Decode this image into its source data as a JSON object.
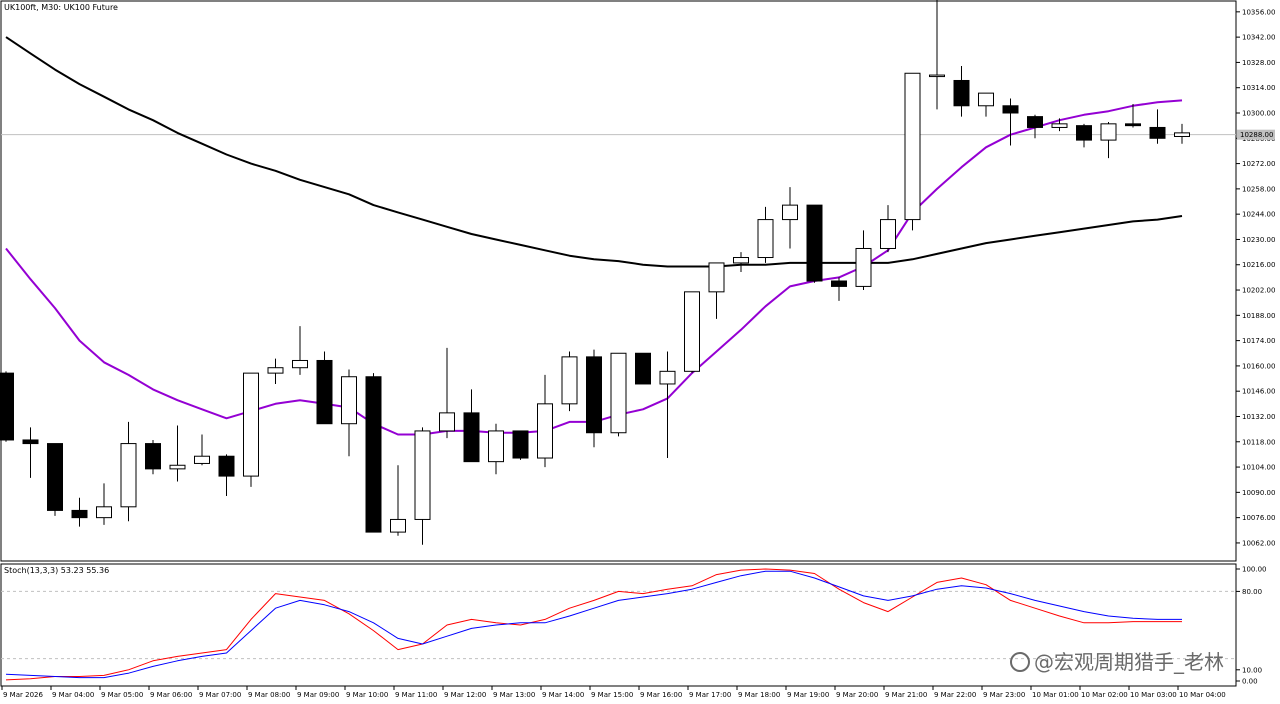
{
  "chart_data": [
    {
      "type": "candlestick",
      "title": "UK100ft, M30:  UK100 Future",
      "ylim": [
        10052,
        10362
      ],
      "yticks": [
        10062,
        10076,
        10090,
        10104,
        10118,
        10132,
        10146,
        10160,
        10174,
        10188,
        10202,
        10216,
        10230,
        10244,
        10258,
        10272,
        10286,
        10300,
        10314,
        10328,
        10342,
        10356
      ],
      "current_price": 10288,
      "current_price_label": "10288.00",
      "colors": {
        "up_body": "#ffffff",
        "down_body": "#000000",
        "wick": "#000000",
        "ma_slow": "#000000",
        "ma_fast": "#9400d3",
        "price_line": "#c0c0c0"
      },
      "x_labels": [
        "9 Mar 2026",
        "9 Mar 04:00",
        "9 Mar 05:00",
        "9 Mar 06:00",
        "9 Mar 07:00",
        "9 Mar 08:00",
        "9 Mar 09:00",
        "9 Mar 10:00",
        "9 Mar 11:00",
        "9 Mar 12:00",
        "9 Mar 13:00",
        "9 Mar 14:00",
        "9 Mar 15:00",
        "9 Mar 16:00",
        "9 Mar 17:00",
        "9 Mar 18:00",
        "9 Mar 19:00",
        "9 Mar 20:00",
        "9 Mar 21:00",
        "9 Mar 22:00",
        "9 Mar 23:00",
        "10 Mar 01:00",
        "10 Mar 02:00",
        "10 Mar 03:00",
        "10 Mar 04:00"
      ],
      "candles": [
        [
          10156,
          10157,
          10118,
          10119
        ],
        [
          10119,
          10126,
          10098,
          10117
        ],
        [
          10117,
          10117,
          10077,
          10080
        ],
        [
          10080,
          10087,
          10071,
          10076
        ],
        [
          10076,
          10095,
          10072,
          10082
        ],
        [
          10082,
          10129,
          10074,
          10117
        ],
        [
          10117,
          10119,
          10100,
          10103
        ],
        [
          10103,
          10127,
          10096,
          10105
        ],
        [
          10106,
          10122,
          10105,
          10110
        ],
        [
          10110,
          10111,
          10088,
          10099
        ],
        [
          10099,
          10156,
          10093,
          10156
        ],
        [
          10156,
          10164,
          10150,
          10159
        ],
        [
          10159,
          10182,
          10155,
          10163
        ],
        [
          10163,
          10168,
          10128,
          10128
        ],
        [
          10128,
          10158,
          10110,
          10154
        ],
        [
          10154,
          10156,
          10068,
          10068
        ],
        [
          10068,
          10105,
          10066,
          10075
        ],
        [
          10075,
          10126,
          10061,
          10124
        ],
        [
          10124,
          10170,
          10120,
          10134
        ],
        [
          10134,
          10147,
          10107,
          10107
        ],
        [
          10107,
          10128,
          10100,
          10124
        ],
        [
          10124,
          10124,
          10108,
          10109
        ],
        [
          10109,
          10155,
          10104,
          10139
        ],
        [
          10139,
          10168,
          10135,
          10165
        ],
        [
          10165,
          10169,
          10115,
          10123
        ],
        [
          10123,
          10167,
          10121,
          10167
        ],
        [
          10167,
          10167,
          10150,
          10150
        ],
        [
          10150,
          10168,
          10109,
          10157
        ],
        [
          10157,
          10201,
          10156,
          10201
        ],
        [
          10201,
          10216,
          10186,
          10217
        ],
        [
          10217,
          10223,
          10212,
          10220
        ],
        [
          10220,
          10248,
          10217,
          10241
        ],
        [
          10241,
          10259,
          10225,
          10249
        ],
        [
          10249,
          10249,
          10206,
          10207
        ],
        [
          10207,
          10209,
          10196,
          10204
        ],
        [
          10204,
          10235,
          10202,
          10225
        ],
        [
          10225,
          10249,
          10223,
          10241
        ],
        [
          10241,
          10322,
          10235,
          10322
        ],
        [
          10321,
          10363,
          10302,
          10321
        ],
        [
          10318,
          10326,
          10298,
          10304
        ],
        [
          10304,
          10311,
          10298,
          10311
        ],
        [
          10304,
          10308,
          10282,
          10300
        ],
        [
          10298,
          10299,
          10286,
          10292
        ],
        [
          10292,
          10297,
          10290,
          10294
        ],
        [
          10293,
          10294,
          10281,
          10285
        ],
        [
          10285,
          10295,
          10275,
          10294
        ],
        [
          10294,
          10305,
          10292,
          10293
        ],
        [
          10292,
          10302,
          10283,
          10286
        ],
        [
          10287,
          10294,
          10283,
          10289
        ]
      ],
      "ma_slow": [
        10342,
        10333,
        10324,
        10316,
        10309,
        10302,
        10296,
        10289,
        10283,
        10277,
        10272,
        10268,
        10263,
        10259,
        10255,
        10249,
        10245,
        10241,
        10237,
        10233,
        10230,
        10227,
        10224,
        10221,
        10219,
        10218,
        10216,
        10215,
        10215,
        10215,
        10216,
        10216,
        10217,
        10217,
        10217,
        10217,
        10217,
        10219,
        10222,
        10225,
        10228,
        10230,
        10232,
        10234,
        10236,
        10238,
        10240,
        10241,
        10243
      ],
      "ma_fast": [
        10225,
        10208,
        10192,
        10174,
        10162,
        10155,
        10147,
        10141,
        10136,
        10131,
        10135,
        10139,
        10141,
        10139,
        10137,
        10128,
        10122,
        10122,
        10124,
        10124,
        10123,
        10123,
        10124,
        10129,
        10129,
        10133,
        10136,
        10142,
        10156,
        10168,
        10180,
        10193,
        10204,
        10207,
        10209,
        10215,
        10224,
        10245,
        10258,
        10270,
        10281,
        10288,
        10292,
        10296,
        10299,
        10301,
        10304,
        10306,
        10307
      ]
    },
    {
      "type": "line",
      "title": "Stoch(13,3,3) 53.23 55.36",
      "ylim": [
        0,
        100
      ],
      "yticks": [
        0,
        10,
        80,
        100
      ],
      "ytick_labels": [
        "0.00",
        "10.00",
        "80.00",
        "100.00"
      ],
      "levels": [
        20,
        80
      ],
      "series": [
        {
          "color": "#ff0000",
          "values": [
            1,
            2,
            4,
            4,
            5,
            10,
            18,
            22,
            25,
            28,
            55,
            78,
            75,
            72,
            60,
            45,
            28,
            33,
            50,
            55,
            52,
            50,
            55,
            65,
            72,
            80,
            78,
            82,
            85,
            95,
            99,
            100,
            99,
            96,
            82,
            70,
            62,
            75,
            88,
            92,
            86,
            72,
            65,
            58,
            52,
            52,
            53,
            53,
            53
          ]
        },
        {
          "color": "#0000ff",
          "values": [
            6,
            5,
            4,
            3,
            3,
            7,
            13,
            18,
            22,
            25,
            45,
            65,
            72,
            68,
            62,
            52,
            38,
            33,
            40,
            47,
            50,
            52,
            52,
            58,
            65,
            72,
            75,
            78,
            82,
            88,
            94,
            98,
            98,
            92,
            84,
            76,
            72,
            76,
            82,
            85,
            83,
            78,
            72,
            67,
            62,
            58,
            56,
            55,
            55
          ]
        }
      ]
    }
  ],
  "watermark": "@宏观周期猎手_老林"
}
